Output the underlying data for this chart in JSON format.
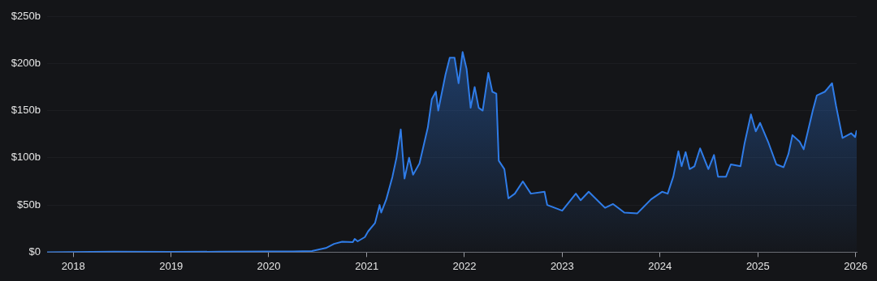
{
  "chart_data": {
    "type": "area",
    "grid": "y",
    "xlim": [
      "2017-09-25",
      "2026-01-05"
    ],
    "xticks": [
      "2018",
      "2019",
      "2020",
      "2021",
      "2022",
      "2023",
      "2024",
      "2025",
      "2026"
    ],
    "ylim": [
      0,
      250
    ],
    "yticks": [
      {
        "value": 0,
        "label": "$0"
      },
      {
        "value": 50,
        "label": "$50b"
      },
      {
        "value": 100,
        "label": "$100b"
      },
      {
        "value": 150,
        "label": "$150b"
      },
      {
        "value": 200,
        "label": "$200b"
      },
      {
        "value": 250,
        "label": "$250b"
      }
    ],
    "series": [
      {
        "color": "#2f7ce8",
        "x": [
          "2017-09-25",
          "2018-06-01",
          "2019-01-01",
          "2019-07-01",
          "2020-01-01",
          "2020-04-01",
          "2020-06-10",
          "2020-08-01",
          "2020-09-01",
          "2020-10-01",
          "2020-11-10",
          "2020-11-17",
          "2020-11-28",
          "2020-12-25",
          "2021-01-06",
          "2021-02-01",
          "2021-02-18",
          "2021-02-24",
          "2021-03-15",
          "2021-04-07",
          "2021-04-22",
          "2021-05-08",
          "2021-05-22",
          "2021-06-08",
          "2021-06-23",
          "2021-07-17",
          "2021-08-17",
          "2021-09-01",
          "2021-09-16",
          "2021-09-25",
          "2021-10-22",
          "2021-11-07",
          "2021-11-25",
          "2021-12-10",
          "2021-12-25",
          "2022-01-09",
          "2022-01-24",
          "2022-02-08",
          "2022-02-23",
          "2022-03-10",
          "2022-03-31",
          "2022-04-15",
          "2022-04-30",
          "2022-05-09",
          "2022-05-30",
          "2022-06-14",
          "2022-07-08",
          "2022-08-07",
          "2022-09-06",
          "2022-10-27",
          "2022-11-06",
          "2023-01-01",
          "2023-02-21",
          "2023-03-11",
          "2023-04-10",
          "2023-06-10",
          "2023-07-10",
          "2023-08-21",
          "2023-10-08",
          "2023-11-29",
          "2024-01-09",
          "2024-01-30",
          "2024-02-20",
          "2024-03-10",
          "2024-03-22",
          "2024-04-06",
          "2024-04-21",
          "2024-05-09",
          "2024-05-30",
          "2024-06-30",
          "2024-07-21",
          "2024-08-05",
          "2024-09-04",
          "2024-09-22",
          "2024-10-28",
          "2024-11-12",
          "2024-12-06",
          "2024-12-24",
          "2025-01-09",
          "2025-02-08",
          "2025-03-11",
          "2025-04-07",
          "2025-04-25",
          "2025-05-10",
          "2025-06-06",
          "2025-06-21",
          "2025-07-25",
          "2025-08-09",
          "2025-09-08",
          "2025-10-05",
          "2025-10-20",
          "2025-11-13",
          "2025-12-15",
          "2025-12-30",
          "2026-01-05"
        ],
        "values": [
          0,
          0.5,
          0.3,
          0.5,
          0.7,
          0.8,
          1.2,
          4.4,
          8.8,
          11,
          10.6,
          14,
          11.5,
          16,
          22,
          31,
          50,
          42,
          56,
          80,
          100,
          130,
          78,
          100,
          82,
          94,
          132,
          162,
          170,
          150,
          188,
          206,
          206,
          179,
          212,
          194,
          153,
          175,
          153,
          150,
          190,
          170,
          168,
          97,
          88,
          57,
          62,
          75,
          62,
          64,
          50,
          44,
          62,
          55,
          64,
          47,
          51,
          42,
          41,
          56,
          64,
          62,
          80,
          107,
          91,
          106,
          88,
          91,
          110,
          88,
          103,
          80,
          80,
          93,
          91,
          115,
          146,
          128,
          137,
          117,
          93,
          90,
          104,
          124,
          117,
          109,
          150,
          166,
          170,
          179,
          155,
          121,
          126,
          122,
          129
        ]
      }
    ]
  }
}
